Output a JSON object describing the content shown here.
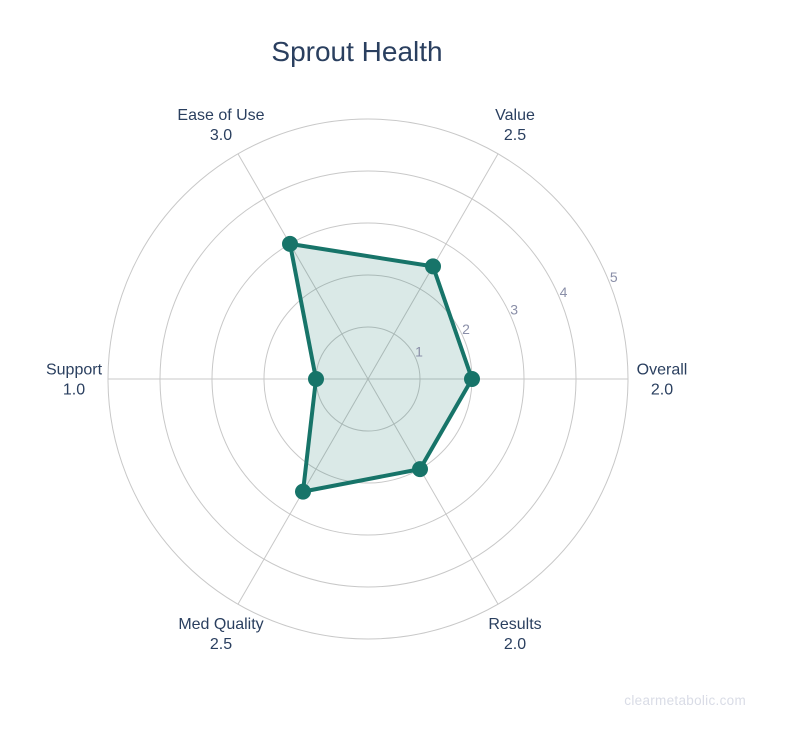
{
  "title": "Sprout Health",
  "watermark": "clearmetabolic.com",
  "colors": {
    "accent": "#177469",
    "fill_opacity": 0.16,
    "grid": "#c8c8c8",
    "label": "#2a3f5f",
    "tick": "#8a8fa8",
    "watermark": "#d9dce6",
    "background": "#ffffff"
  },
  "chart_data": {
    "type": "radar",
    "title": "Sprout Health",
    "categories": [
      "Overall",
      "Value",
      "Ease of Use",
      "Support",
      "Med Quality",
      "Results"
    ],
    "values": [
      2.0,
      2.5,
      3.0,
      1.0,
      2.5,
      2.0
    ],
    "value_labels": [
      "2.0",
      "2.5",
      "3.0",
      "1.0",
      "2.5",
      "2.0"
    ],
    "angles_deg": [
      0,
      60,
      120,
      180,
      240,
      300
    ],
    "radial_ticks": [
      1,
      2,
      3,
      4,
      5
    ],
    "radial_range": [
      0,
      5
    ],
    "grid": "on",
    "legend": "none"
  }
}
